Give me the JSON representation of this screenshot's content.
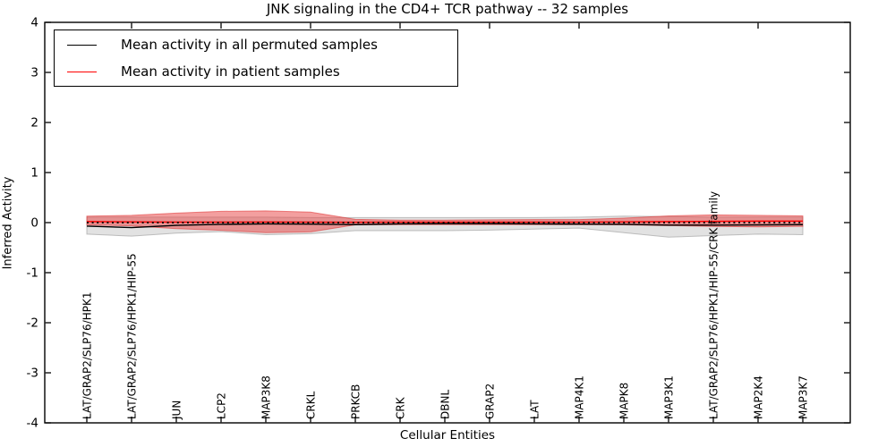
{
  "title": "JNK signaling in the CD4+ TCR pathway -- 32 samples",
  "legend": {
    "items": [
      {
        "label": "Mean activity in all permuted samples",
        "color": "#000000"
      },
      {
        "label": "Mean activity in patient samples",
        "color": "#ff0000"
      }
    ]
  },
  "chart_data": {
    "type": "line",
    "title": "JNK signaling in the CD4+ TCR pathway -- 32 samples",
    "xlabel": "Cellular Entities",
    "ylabel": "Inferred Activity",
    "ylim": [
      -4,
      4
    ],
    "yticks": [
      4,
      3,
      2,
      1,
      0,
      -1,
      -2,
      -3,
      -4
    ],
    "grid": false,
    "legend_position": "upper left",
    "zero_reference_line": 0,
    "categories": [
      "LAT/GRAP2/SLP76/HPK1",
      "LAT/GRAP2/SLP76/HPK1/HIP-55",
      "JUN",
      "LCP2",
      "MAP3K8",
      "CRKL",
      "PRKCB",
      "CRK",
      "DBNL",
      "GRAP2",
      "LAT",
      "MAP4K1",
      "MAPK8",
      "MAP3K1",
      "LAT/GRAP2/SLP76/HPK1/HIP-55/CRK family",
      "MAP2K4",
      "MAP3K7"
    ],
    "series": [
      {
        "name": "Mean activity in all permuted samples",
        "color": "#000000",
        "values": [
          -0.07,
          -0.1,
          -0.055,
          -0.035,
          -0.025,
          -0.03,
          -0.04,
          -0.025,
          -0.02,
          -0.02,
          -0.025,
          -0.03,
          -0.035,
          -0.05,
          -0.05,
          -0.045,
          -0.04
        ],
        "band": {
          "upper": [
            0.11,
            0.11,
            0.11,
            0.11,
            0.11,
            0.1,
            0.1,
            0.1,
            0.1,
            0.1,
            0.1,
            0.11,
            0.13,
            0.12,
            0.11,
            0.11,
            0.11
          ],
          "lower": [
            -0.23,
            -0.27,
            -0.21,
            -0.18,
            -0.24,
            -0.22,
            -0.16,
            -0.16,
            -0.16,
            -0.15,
            -0.13,
            -0.11,
            -0.2,
            -0.29,
            -0.26,
            -0.23,
            -0.24
          ],
          "fill": "rgba(150,150,150,0.28)",
          "edge": "rgba(160,160,160,0.65)"
        }
      },
      {
        "name": "Mean activity in patient samples",
        "color": "#ff0000",
        "values": [
          0.02,
          0.015,
          0.01,
          0.01,
          0.012,
          0.01,
          0.008,
          0.01,
          0.01,
          0.01,
          0.01,
          0.01,
          0.015,
          0.02,
          0.025,
          0.03,
          0.03
        ],
        "band": {
          "upper": [
            0.13,
            0.145,
            0.19,
            0.225,
            0.235,
            0.21,
            0.065,
            0.05,
            0.05,
            0.055,
            0.06,
            0.06,
            0.09,
            0.135,
            0.155,
            0.145,
            0.135
          ],
          "lower": [
            -0.045,
            -0.065,
            -0.12,
            -0.155,
            -0.2,
            -0.185,
            -0.045,
            -0.04,
            -0.04,
            -0.04,
            -0.04,
            -0.04,
            -0.045,
            -0.06,
            -0.075,
            -0.085,
            -0.075
          ],
          "fill": "rgba(232,70,70,0.52)",
          "edge": "rgba(222,45,45,0.55)"
        }
      }
    ]
  }
}
